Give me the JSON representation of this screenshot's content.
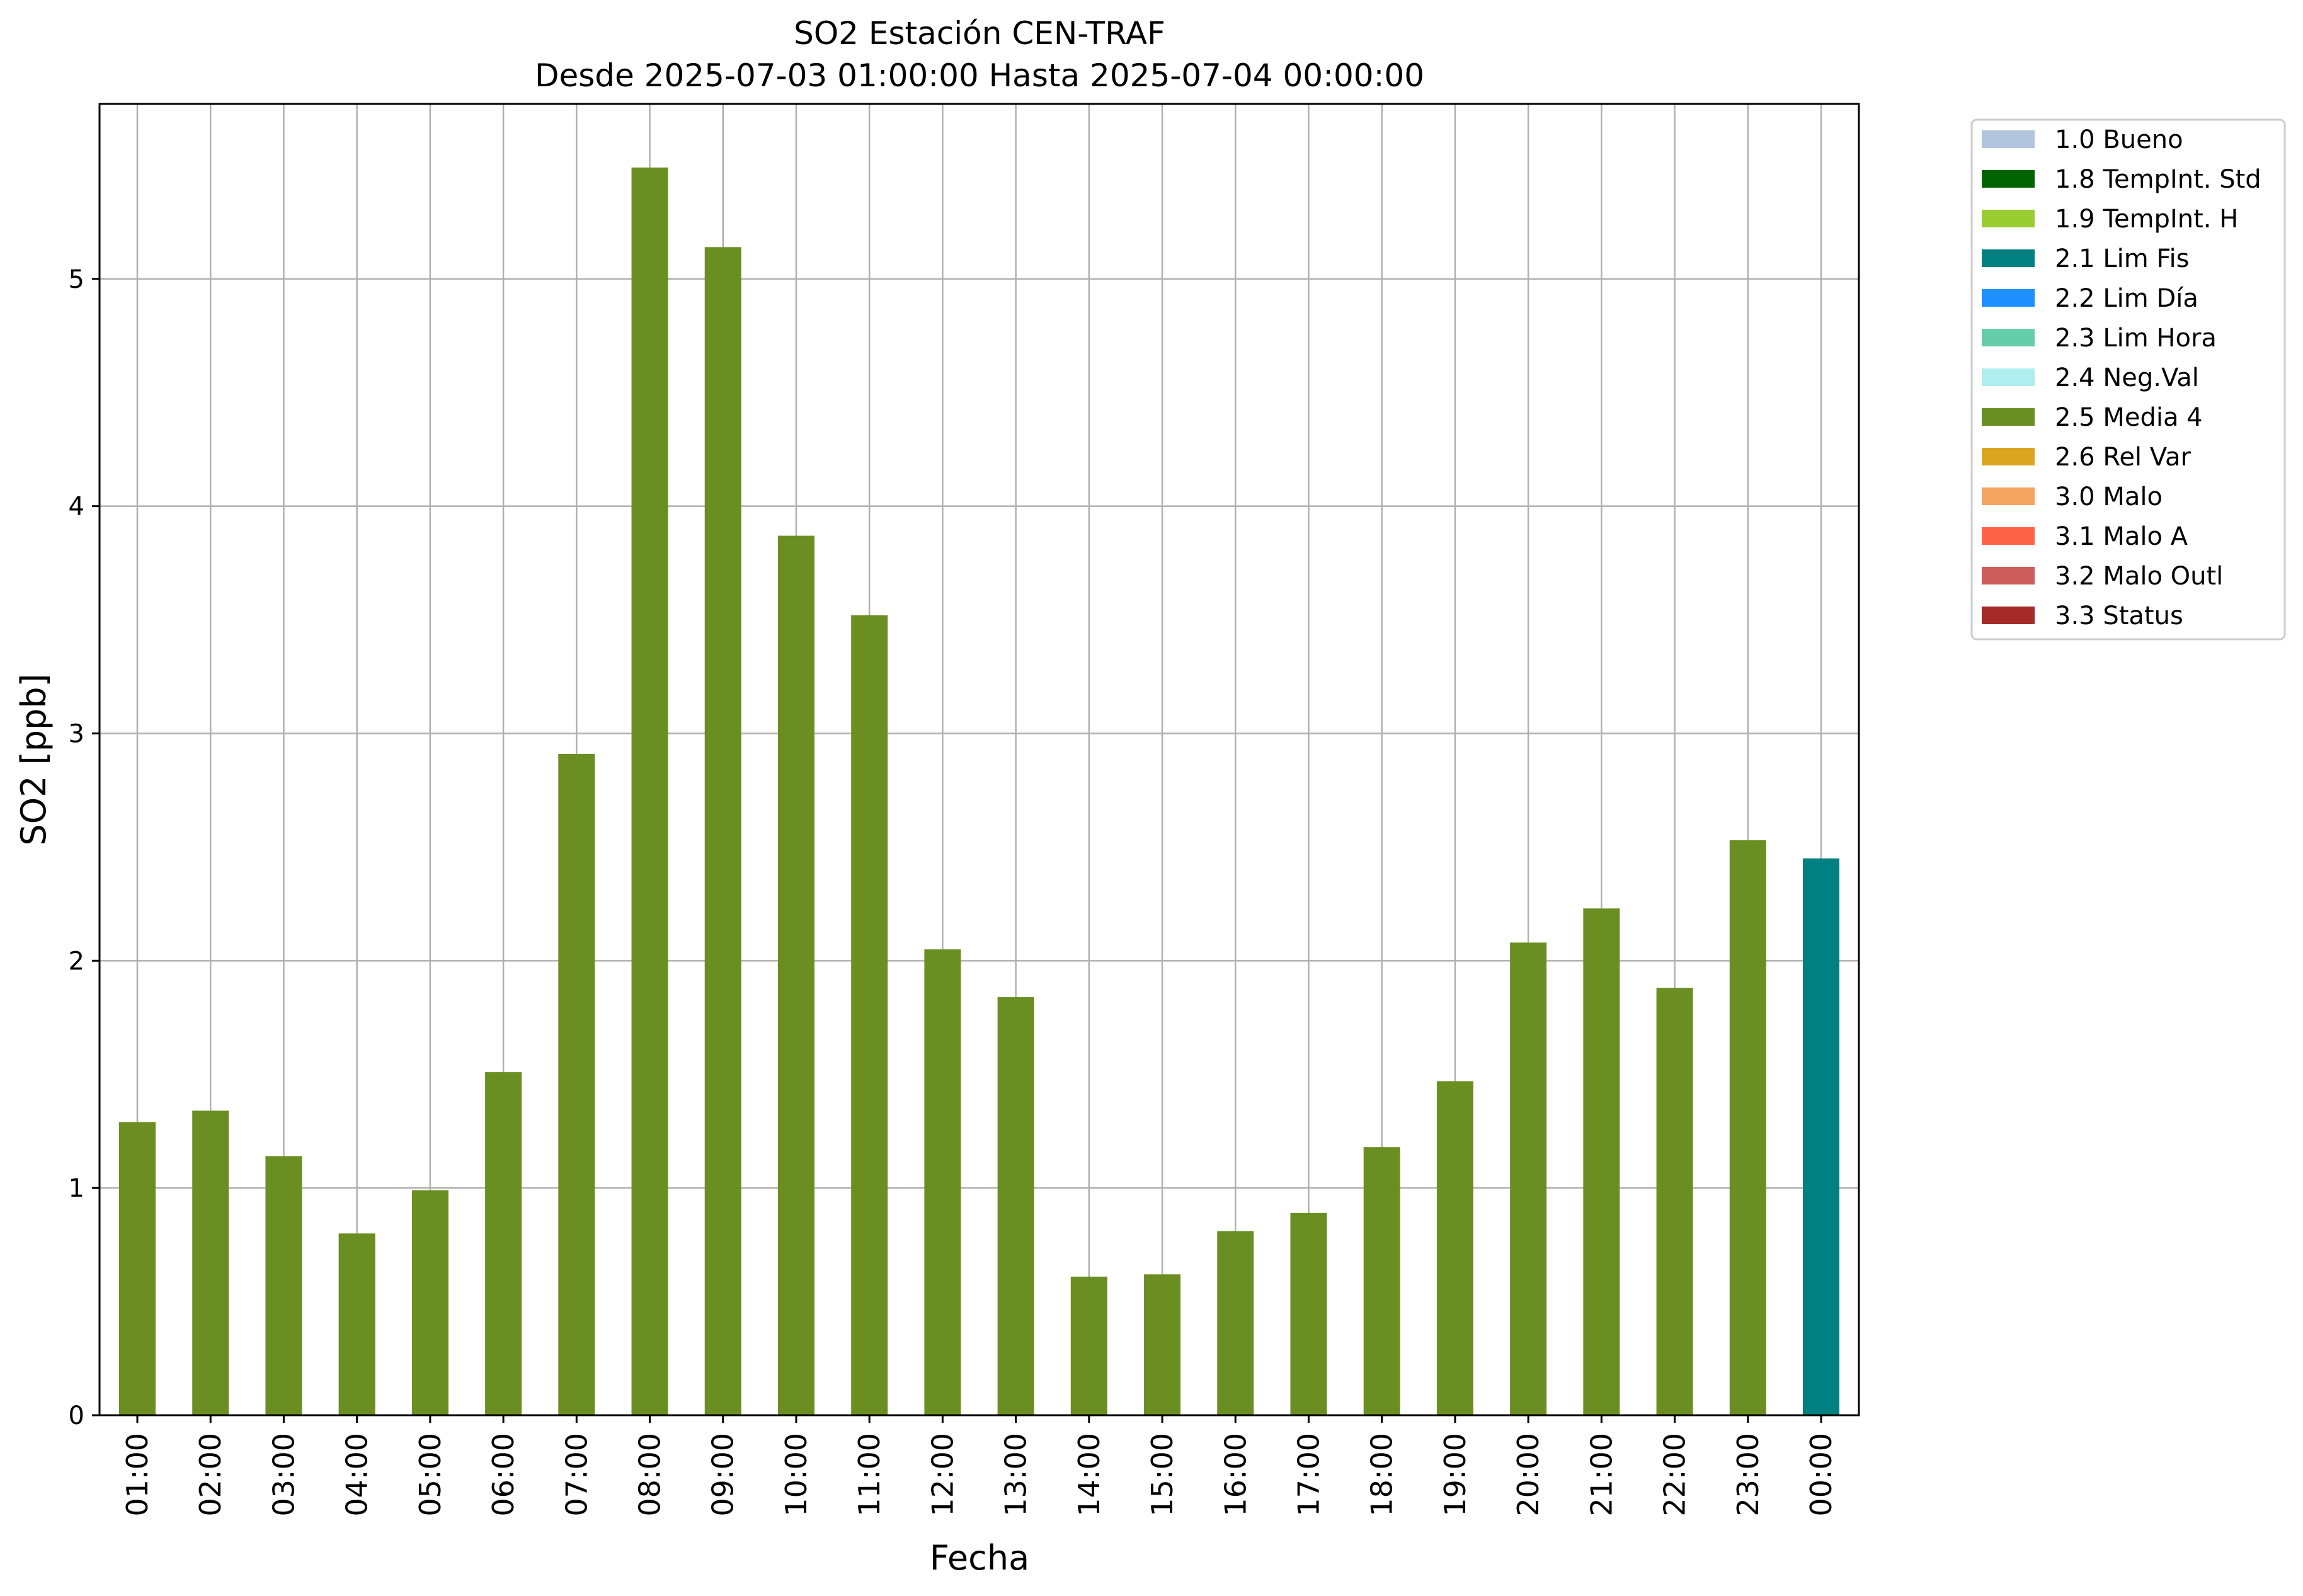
{
  "chart_data": {
    "type": "bar",
    "title": "SO2 Estación CEN-TRAF",
    "subtitle": "Desde 2025-07-03 01:00:00 Hasta 2025-07-04 00:00:00",
    "xlabel": "Fecha",
    "ylabel": "SO2 [ppb]",
    "ylim": [
      0,
      5.77
    ],
    "yticks": [
      0,
      1,
      2,
      3,
      4,
      5
    ],
    "grid": true,
    "legend_position": "outside-top-right",
    "categories": [
      "01:00",
      "02:00",
      "03:00",
      "04:00",
      "05:00",
      "06:00",
      "07:00",
      "08:00",
      "09:00",
      "10:00",
      "11:00",
      "12:00",
      "13:00",
      "14:00",
      "15:00",
      "16:00",
      "17:00",
      "18:00",
      "19:00",
      "20:00",
      "21:00",
      "22:00",
      "23:00",
      "00:00"
    ],
    "values": [
      1.29,
      1.34,
      1.14,
      0.8,
      0.99,
      1.51,
      2.91,
      5.49,
      5.14,
      3.87,
      3.52,
      2.05,
      1.84,
      0.61,
      0.62,
      0.81,
      0.89,
      1.18,
      1.47,
      2.08,
      2.23,
      1.88,
      2.53,
      2.45
    ],
    "bar_flags": [
      "2.5 Media 4",
      "2.5 Media 4",
      "2.5 Media 4",
      "2.5 Media 4",
      "2.5 Media 4",
      "2.5 Media 4",
      "2.5 Media 4",
      "2.5 Media 4",
      "2.5 Media 4",
      "2.5 Media 4",
      "2.5 Media 4",
      "2.5 Media 4",
      "2.5 Media 4",
      "2.5 Media 4",
      "2.5 Media 4",
      "2.5 Media 4",
      "2.5 Media 4",
      "2.5 Media 4",
      "2.5 Media 4",
      "2.5 Media 4",
      "2.5 Media 4",
      "2.5 Media 4",
      "2.5 Media 4",
      "2.1 Lim Fis"
    ],
    "legend": [
      {
        "label": "1.0 Bueno",
        "color": "#b0c4de"
      },
      {
        "label": "1.8 TempInt. Std",
        "color": "#006400"
      },
      {
        "label": "1.9 TempInt. H",
        "color": "#9acd32"
      },
      {
        "label": "2.1 Lim Fis",
        "color": "#008080"
      },
      {
        "label": "2.2 Lim Día",
        "color": "#1e90ff"
      },
      {
        "label": "2.3 Lim Hora",
        "color": "#66cdaa"
      },
      {
        "label": "2.4 Neg.Val",
        "color": "#afeeee"
      },
      {
        "label": "2.5 Media 4",
        "color": "#6b8e23"
      },
      {
        "label": "2.6 Rel Var",
        "color": "#daa520"
      },
      {
        "label": "3.0 Malo",
        "color": "#f4a460"
      },
      {
        "label": "3.1 Malo A",
        "color": "#ff6347"
      },
      {
        "label": "3.2 Malo Outl",
        "color": "#cd5c5c"
      },
      {
        "label": "3.3 Status",
        "color": "#a52a2a"
      }
    ]
  }
}
